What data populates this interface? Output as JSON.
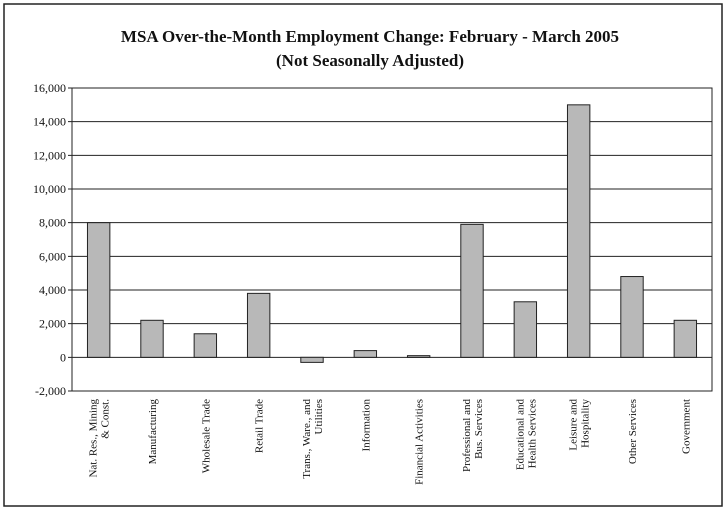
{
  "chart_data": {
    "type": "bar",
    "title": "MSA Over-the-Month Employment Change: February - March 2005",
    "subtitle": "(Not Seasonally Adjusted)",
    "categories": [
      "Nat. Res., Mining & Const.",
      "Manufacturing",
      "Wholesale Trade",
      "Retail Trade",
      "Trans., Ware., and Utilities",
      "Information",
      "Financial Activities",
      "Professional and Bus. Services",
      "Educational and Health Services",
      "Leisure and Hospitality",
      "Other Services",
      "Government"
    ],
    "values": [
      8000,
      2200,
      1400,
      3800,
      -300,
      400,
      100,
      7900,
      3300,
      15000,
      4800,
      2200
    ],
    "color": "#b8b8b8",
    "ylim": [
      -2000,
      16000
    ],
    "yticks": [
      {
        "value": -2000,
        "label": "-2,000"
      },
      0,
      {
        "value": 2000,
        "label": "2,000"
      },
      {
        "value": 4000,
        "label": "4,000"
      },
      {
        "value": 6000,
        "label": "6,000"
      },
      {
        "value": 8000,
        "label": "8,000"
      },
      {
        "value": 10000,
        "label": "10,000"
      },
      {
        "value": 12000,
        "label": "12,000"
      },
      {
        "value": 14000,
        "label": "14,000"
      },
      {
        "value": 16000,
        "label": "16,000"
      }
    ],
    "grid": true
  }
}
